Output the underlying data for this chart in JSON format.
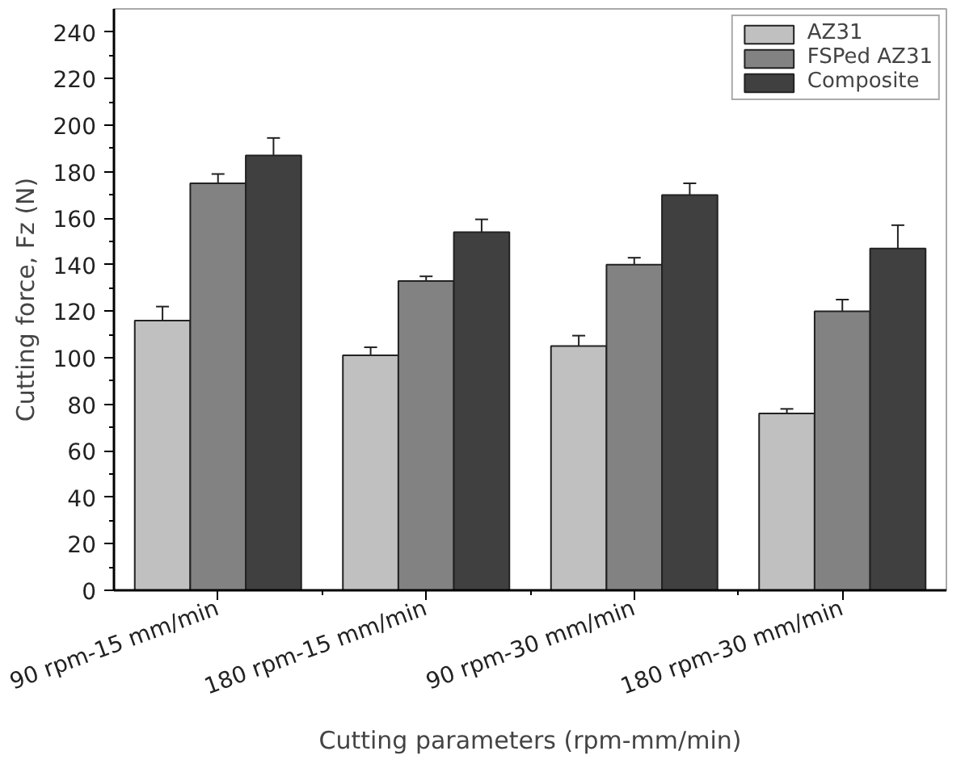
{
  "chart_data": {
    "type": "bar",
    "xlabel": "Cutting parameters (rpm-mm/min)",
    "ylabel": "Cutting force, Fz (N)",
    "categories": [
      "90 rpm-15 mm/min",
      "180 rpm-15 mm/min",
      "90 rpm-30 mm/min",
      "180 rpm-30 mm/min"
    ],
    "series": [
      {
        "name": "AZ31",
        "color": "#c0c0c0",
        "values": [
          116,
          101,
          105,
          76
        ],
        "errors": [
          6,
          3.5,
          4.5,
          2
        ]
      },
      {
        "name": "FSPed AZ31",
        "color": "#828282",
        "values": [
          175,
          133,
          140,
          120
        ],
        "errors": [
          4,
          2,
          3,
          5
        ]
      },
      {
        "name": "Composite",
        "color": "#404040",
        "values": [
          187,
          154,
          170,
          147
        ],
        "errors": [
          7.5,
          5.5,
          5,
          10
        ]
      }
    ],
    "ylim": [
      0,
      250
    ],
    "yticks": [
      0,
      20,
      40,
      60,
      80,
      100,
      120,
      140,
      160,
      180,
      200,
      220,
      240
    ],
    "grid": false,
    "legend": "top right"
  }
}
